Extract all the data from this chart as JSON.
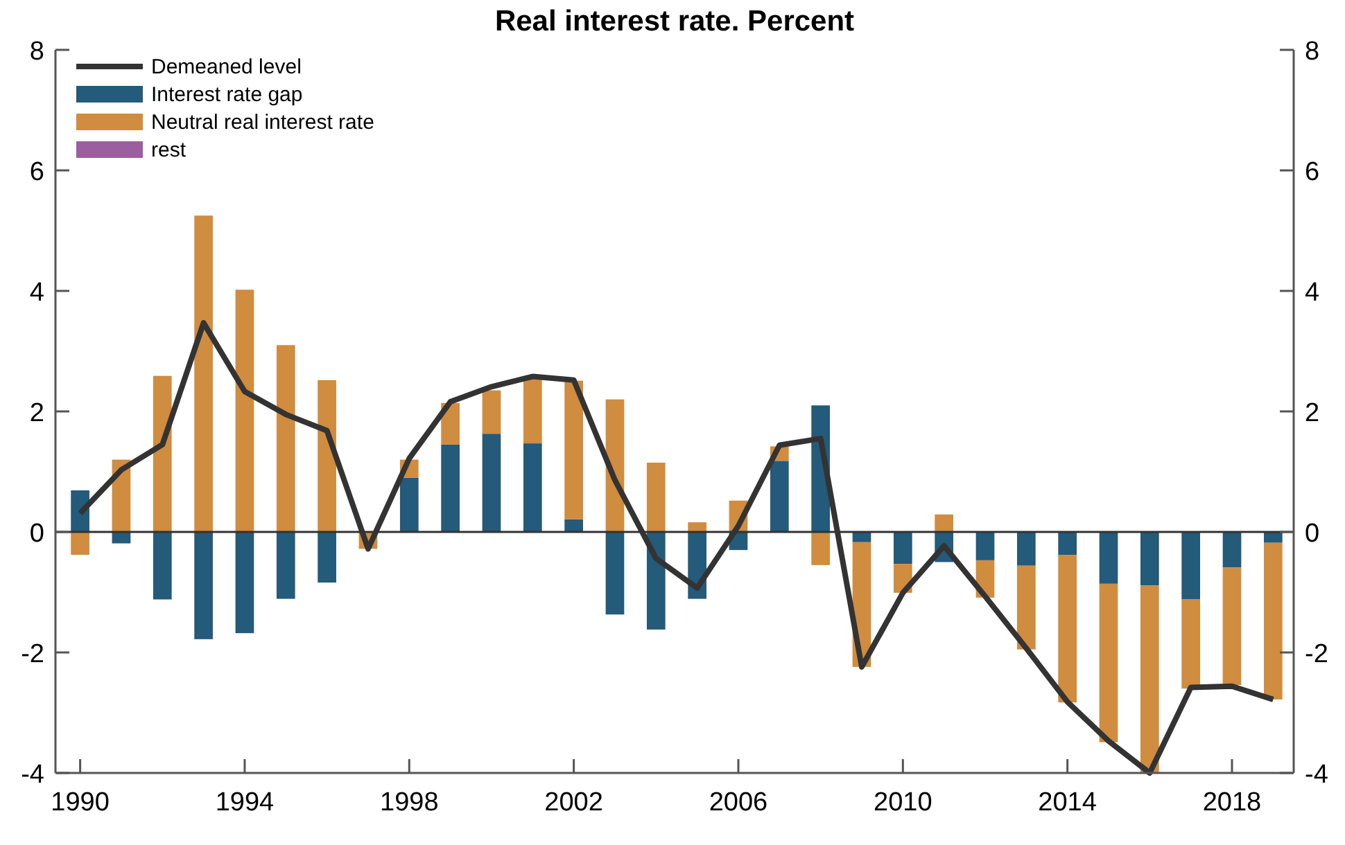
{
  "chart_data": {
    "type": "bar",
    "title": "Real interest rate. Percent",
    "stacked": true,
    "x": [
      1990,
      1991,
      1992,
      1993,
      1994,
      1995,
      1996,
      1997,
      1998,
      1999,
      2000,
      2001,
      2002,
      2003,
      2004,
      2005,
      2006,
      2007,
      2008,
      2009,
      2010,
      2011,
      2012,
      2013,
      2014,
      2015,
      2016,
      2017,
      2018,
      2019
    ],
    "series": [
      {
        "name": "Demeaned level",
        "type": "line",
        "color": "#333333",
        "values": [
          0.31,
          1.03,
          1.45,
          3.47,
          2.33,
          1.95,
          1.68,
          -0.28,
          1.22,
          2.16,
          2.41,
          2.58,
          2.52,
          0.86,
          -0.44,
          -0.93,
          0.1,
          1.44,
          1.55,
          -2.24,
          -1.01,
          -0.23,
          -1.07,
          -1.93,
          -2.82,
          -3.47,
          -4.0,
          -2.58,
          -2.56,
          -2.78
        ]
      },
      {
        "name": "Interest rate gap",
        "color": "#245a7a",
        "values": [
          0.69,
          -0.19,
          -1.12,
          -1.78,
          -1.68,
          -1.11,
          -0.84,
          0,
          0.9,
          1.45,
          1.63,
          1.47,
          0.21,
          -1.37,
          -1.62,
          -1.11,
          -0.3,
          1.18,
          2.1,
          -0.17,
          -0.53,
          -0.5,
          -0.47,
          -0.56,
          -0.38,
          -0.86,
          -0.89,
          -1.12,
          -0.59,
          -0.18
        ]
      },
      {
        "name": "Neutral real interest rate",
        "color": "#d08c3f",
        "values": [
          -0.38,
          1.2,
          2.59,
          5.25,
          4.02,
          3.1,
          2.52,
          -0.28,
          0.3,
          0.69,
          0.72,
          1.08,
          2.3,
          2.2,
          1.15,
          0.16,
          0.52,
          0.24,
          -0.55,
          -2.07,
          -0.48,
          0.29,
          -0.62,
          -1.39,
          -2.45,
          -2.63,
          -3.11,
          -1.48,
          -1.95,
          -2.6
        ]
      },
      {
        "name": "rest",
        "color": "#9b5ea0",
        "values": [
          0,
          0,
          0,
          0,
          0,
          0,
          0,
          0,
          0,
          0,
          0,
          0,
          0,
          0,
          0,
          0,
          0,
          0,
          0,
          0,
          0,
          0,
          0,
          0,
          0,
          0,
          0,
          0,
          0,
          0
        ]
      }
    ],
    "xlim": [
      1989.4,
      2019.5
    ],
    "xticks": [
      1990,
      1994,
      1998,
      2002,
      2006,
      2010,
      2014,
      2018
    ],
    "ylim": [
      -4,
      8
    ],
    "yticks": [
      -4,
      -2,
      0,
      2,
      4,
      6,
      8
    ],
    "y2lim": [
      -4,
      8
    ],
    "y2ticks": [
      -4,
      -2,
      0,
      2,
      4,
      6,
      8
    ],
    "ref_lines": [
      {
        "axis": "y",
        "value": 0,
        "color": "#333333"
      }
    ],
    "legend": "top left",
    "grid": false
  }
}
